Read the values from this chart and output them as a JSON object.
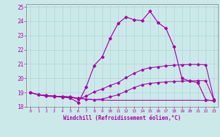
{
  "xlabel": "Windchill (Refroidissement éolien,°C)",
  "xlim": [
    -0.5,
    23.5
  ],
  "ylim": [
    18,
    25.2
  ],
  "yticks": [
    18,
    19,
    20,
    21,
    22,
    23,
    24,
    25
  ],
  "xticks": [
    0,
    1,
    2,
    3,
    4,
    5,
    6,
    7,
    8,
    9,
    10,
    11,
    12,
    13,
    14,
    15,
    16,
    17,
    18,
    19,
    20,
    21,
    22,
    23
  ],
  "background_color": "#cce9e9",
  "grid_color": "#aad4d4",
  "line_color": "#aa00aa",
  "line1_y": [
    19.0,
    18.85,
    18.8,
    18.75,
    18.72,
    18.7,
    18.6,
    18.55,
    18.5,
    18.48,
    18.46,
    18.46,
    18.46,
    18.46,
    18.46,
    18.46,
    18.46,
    18.46,
    18.46,
    18.46,
    18.46,
    18.46,
    18.45,
    18.45
  ],
  "line2_y": [
    19.0,
    18.85,
    18.8,
    18.75,
    18.72,
    18.7,
    18.6,
    18.55,
    18.5,
    18.55,
    18.7,
    18.85,
    19.1,
    19.35,
    19.55,
    19.65,
    19.7,
    19.75,
    19.78,
    19.8,
    19.82,
    19.84,
    19.83,
    18.5
  ],
  "line3_y": [
    19.0,
    18.85,
    18.8,
    18.75,
    18.72,
    18.68,
    18.55,
    18.75,
    19.05,
    19.25,
    19.5,
    19.7,
    20.05,
    20.35,
    20.6,
    20.75,
    20.8,
    20.88,
    20.92,
    20.95,
    20.97,
    20.97,
    20.95,
    18.55
  ],
  "line4_y": [
    19.0,
    18.85,
    18.75,
    18.72,
    18.68,
    18.62,
    18.3,
    19.4,
    20.9,
    21.5,
    22.8,
    23.85,
    24.3,
    24.1,
    24.05,
    24.7,
    23.9,
    23.5,
    22.2,
    20.0,
    19.8,
    19.7,
    18.5,
    18.42
  ]
}
